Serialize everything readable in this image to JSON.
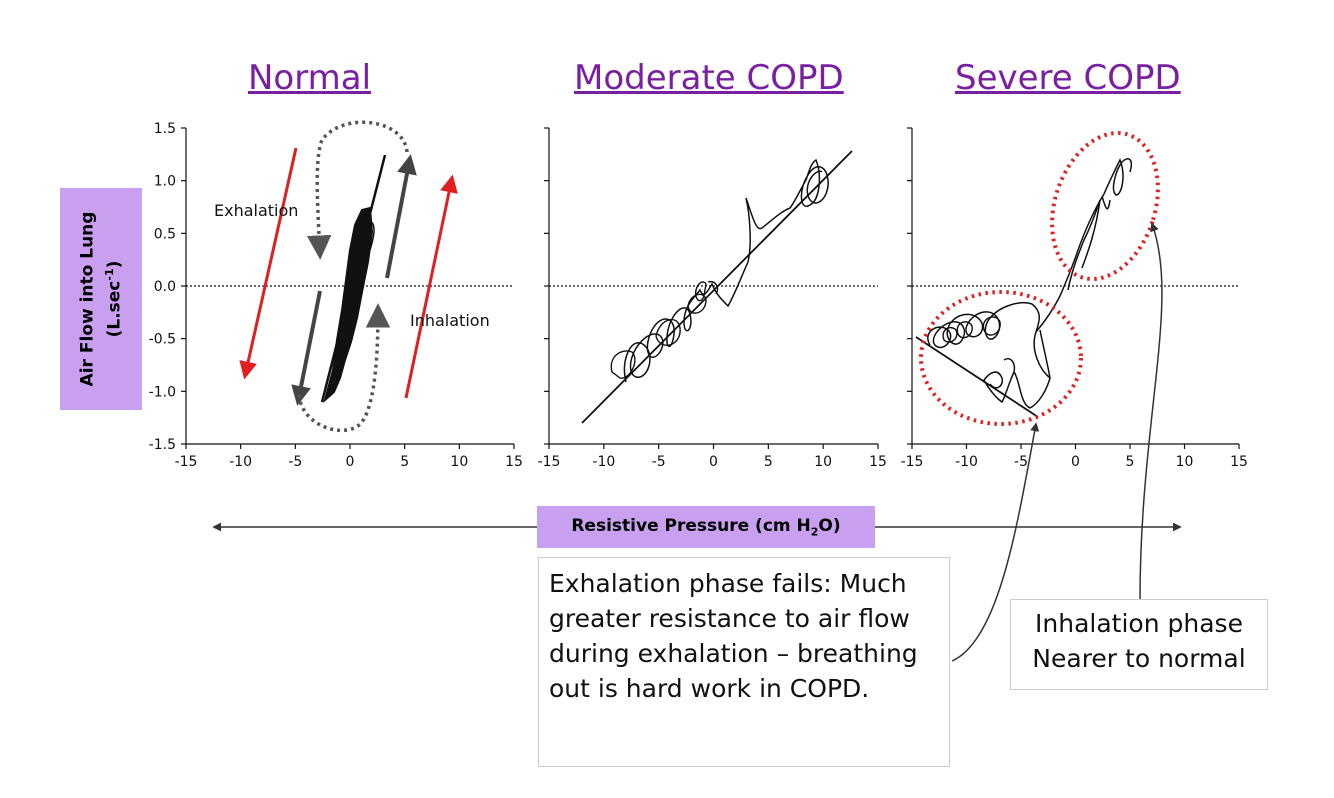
{
  "titles": [
    "Normal",
    "Moderate COPD",
    "Severe COPD"
  ],
  "y_axis_label": {
    "main": "Air Flow into Lung",
    "units_prefix": "(L.sec",
    "units_exp": "-1",
    "units_suffix": ")"
  },
  "x_axis_label": {
    "prefix": "Resistive Pressure (cm H",
    "sub": "2",
    "suffix": "O)"
  },
  "annotations": {
    "exhalation": "Exhalation",
    "inhalation": "Inhalation"
  },
  "note_exhalation": "Exhalation phase fails: Much greater resistance to air flow during exhalation – breathing out is hard work in COPD.",
  "note_inhalation": {
    "line1": "Inhalation phase",
    "line2": "Nearer to normal"
  },
  "colors": {
    "title": "#7b1fa2",
    "label_bg": "#c9a0f0",
    "highlight": "#e02020",
    "arrow_dark": "#444444"
  },
  "chart_data": [
    {
      "type": "line",
      "title": "Normal",
      "xlabel": "Resistive Pressure (cm H2O)",
      "ylabel": "Air Flow into Lung (L.sec-1)",
      "xlim": [
        -15,
        15
      ],
      "ylim": [
        -1.5,
        1.5
      ],
      "xticks": [
        -15,
        -10,
        -5,
        0,
        5,
        10,
        15
      ],
      "yticks": [
        -1.5,
        -1.0,
        -0.5,
        0.0,
        0.5,
        1.0,
        1.5
      ],
      "yticklabels": [
        "-1.5",
        "-1.0",
        "-0.5",
        "0.0",
        "0.5",
        "1.0",
        "1.5"
      ],
      "xticklabels": [
        "-15",
        "-10",
        "-5",
        "0",
        "5",
        "10",
        "15"
      ],
      "series": [
        {
          "name": "pressure-flow loops",
          "x": [
            -2.5,
            -1.2,
            0,
            1.0,
            2.2,
            3.0
          ],
          "y": [
            -1.1,
            -0.6,
            0.0,
            0.4,
            0.7,
            1.22
          ]
        }
      ]
    },
    {
      "type": "line",
      "title": "Moderate COPD",
      "xlim": [
        -15,
        15
      ],
      "ylim": [
        -1.5,
        1.5
      ],
      "xticks": [
        -15,
        -10,
        -5,
        0,
        5,
        10,
        15
      ],
      "xticklabels": [
        "-15",
        "-10",
        "-5",
        "0",
        "5",
        "10",
        "15"
      ],
      "series": [
        {
          "name": "regression line",
          "x": [
            -12,
            12.5
          ],
          "y": [
            -1.28,
            1.27
          ]
        },
        {
          "name": "pressure-flow loops",
          "x": [
            -8,
            -7,
            -5,
            -3,
            -1,
            1,
            3,
            5,
            7,
            9,
            10
          ],
          "y": [
            -0.85,
            -0.6,
            -0.5,
            -0.3,
            -0.1,
            0.0,
            0.3,
            0.5,
            0.8,
            1.0,
            1.1
          ]
        }
      ]
    },
    {
      "type": "line",
      "title": "Severe COPD",
      "xlim": [
        -15,
        15
      ],
      "ylim": [
        -1.5,
        1.5
      ],
      "xticks": [
        -15,
        -10,
        -5,
        0,
        5,
        10,
        15
      ],
      "xticklabels": [
        "-15",
        "-10",
        "-5",
        "0",
        "5",
        "10",
        "15"
      ],
      "series": [
        {
          "name": "regression line",
          "x": [
            -14.5,
            -3.5
          ],
          "y": [
            -0.5,
            -1.22
          ]
        },
        {
          "name": "pressure-flow loops",
          "x": [
            -13,
            -11,
            -9,
            -6,
            -3,
            0,
            2,
            4,
            5
          ],
          "y": [
            -0.6,
            -0.5,
            -0.4,
            -0.7,
            -0.9,
            0.0,
            0.5,
            1.0,
            1.15
          ]
        }
      ]
    }
  ]
}
